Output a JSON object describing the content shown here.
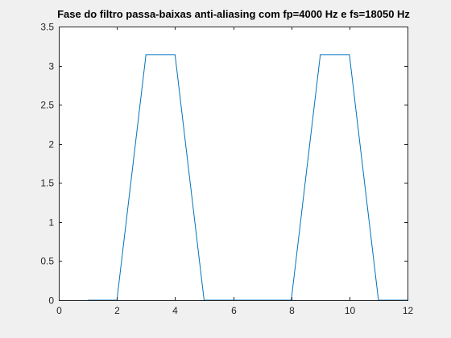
{
  "colors": {
    "figure_background": "#f0f0f0",
    "axes_background": "#ffffff",
    "axis_color": "#262626",
    "line_color": "#0072bd"
  },
  "chart_data": {
    "type": "line",
    "title": "Fase do filtro passa-baixas anti-aliasing com fp=4000 Hz e fs=18050 Hz",
    "xlabel": "",
    "ylabel": "",
    "xlim": [
      0,
      12
    ],
    "ylim": [
      0,
      3.5
    ],
    "grid": false,
    "xticks": [
      0,
      2,
      4,
      6,
      8,
      10,
      12
    ],
    "xtick_labels": [
      "0",
      "2",
      "4",
      "6",
      "8",
      "10",
      "12"
    ],
    "yticks": [
      0,
      0.5,
      1,
      1.5,
      2,
      2.5,
      3,
      3.5
    ],
    "ytick_labels": [
      "0",
      "0.5",
      "1",
      "1.5",
      "2",
      "2.5",
      "3",
      "3.5"
    ],
    "series": [
      {
        "x": [
          1,
          2,
          3,
          4,
          5,
          6,
          7,
          8,
          9,
          10,
          11,
          12
        ],
        "y": [
          0,
          0,
          3.1416,
          3.1416,
          0,
          0,
          0,
          0,
          3.1416,
          3.1416,
          0,
          0
        ]
      }
    ]
  }
}
